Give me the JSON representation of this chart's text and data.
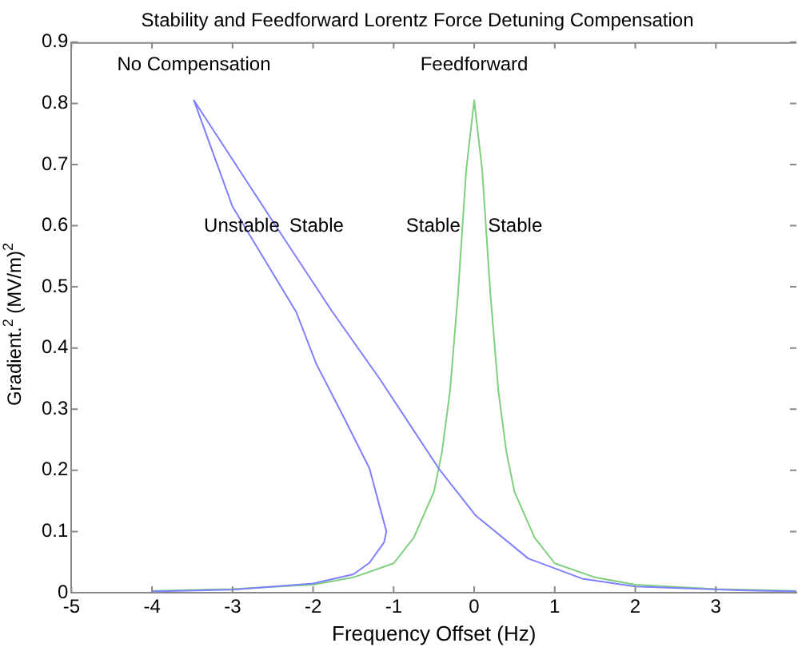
{
  "chart_data": {
    "type": "line",
    "title": "Stability and Feedforward Lorentz Force Detuning Compensation",
    "xlabel": "Frequency Offset (Hz)",
    "ylabel": "Gradient.$^{2}$ (MV/m)$^{2}$",
    "xlim": [
      -5,
      4
    ],
    "xticks": [
      -5,
      -4,
      -3,
      -2,
      -1,
      0,
      1,
      2,
      3
    ],
    "ylim": [
      0,
      0.9
    ],
    "yticks": [
      0,
      0.1,
      0.2,
      0.3,
      0.4,
      0.5,
      0.6,
      0.7,
      0.8,
      0.9
    ],
    "grid": false,
    "legend": false,
    "marker": "none",
    "line_style": "solid",
    "series": [
      {
        "name": "No Compensation",
        "color": "#7f7fff",
        "x": [
          -4,
          -3,
          -2,
          -1.5,
          -1.3,
          -1.12,
          -1.09,
          -1.3,
          -1.62,
          -1.96,
          -2.21,
          -3.0,
          -3.48,
          -2.49,
          -1.76,
          -1.17,
          -0.44,
          0.02,
          0.67,
          1.34,
          2,
          3.3,
          4
        ],
        "values": [
          0.002,
          0.005,
          0.015,
          0.03,
          0.049,
          0.082,
          0.1,
          0.203,
          0.287,
          0.374,
          0.459,
          0.631,
          0.805,
          0.605,
          0.459,
          0.349,
          0.203,
          0.126,
          0.056,
          0.023,
          0.01,
          0.004,
          0.002
        ]
      },
      {
        "name": "Feedforward",
        "color": "#7fcf7f",
        "x": [
          -4,
          -3,
          -2,
          -1.5,
          -1,
          -0.75,
          -0.5,
          -0.4,
          -0.3,
          -0.2,
          -0.1,
          0,
          0.1,
          0.2,
          0.3,
          0.4,
          0.5,
          0.75,
          1,
          1.5,
          2,
          3,
          4
        ],
        "values": [
          0.003,
          0.006,
          0.013,
          0.025,
          0.048,
          0.09,
          0.165,
          0.23,
          0.33,
          0.49,
          0.69,
          0.805,
          0.69,
          0.49,
          0.33,
          0.23,
          0.165,
          0.09,
          0.048,
          0.025,
          0.013,
          0.006,
          0.003
        ]
      }
    ],
    "annotations": [
      "Unstable",
      "Stable",
      "Stable",
      "Stable"
    ]
  }
}
